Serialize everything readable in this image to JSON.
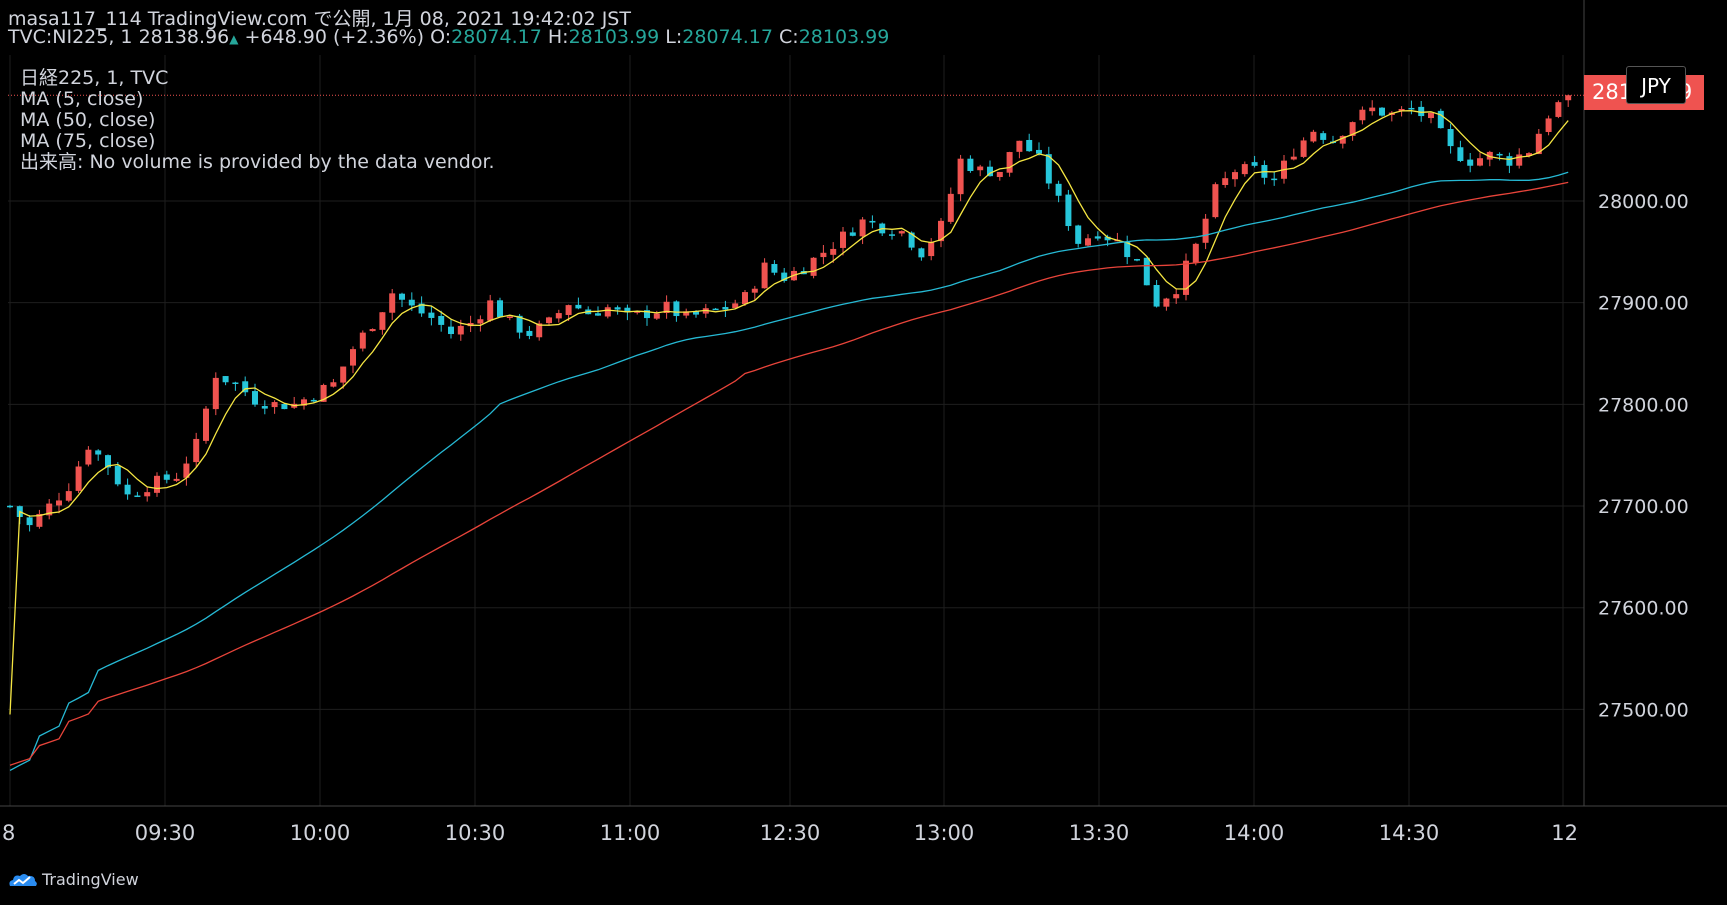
{
  "header": {
    "line1": "masa117_114 TradingView.com で公開, 1月 08, 2021 19:42:02 JST",
    "symbol": "TVC:NI225, 1",
    "last": "28138.96",
    "change": "+648.90 (+2.36%)",
    "o_label": "O:",
    "o_val": "28074.17",
    "h_label": "H:",
    "h_val": "28103.99",
    "l_label": "L:",
    "l_val": "28074.17",
    "c_label": "C:",
    "c_val": "28103.99"
  },
  "legend": {
    "title": "日経225, 1, TVC",
    "ma5": "MA (5, close)",
    "ma50": "MA (50, close)",
    "ma75": "MA (75, close)",
    "volume": "出来高: No volume is provided by the data vendor."
  },
  "price_tag": "28103.99",
  "currency_tag": "JPY",
  "brand": "TradingView",
  "icons": {
    "logo": "tradingview-logo-icon"
  },
  "colors": {
    "background": "#000000",
    "up": "#ef5350",
    "down": "#26c6da",
    "ma5": "#f5e642",
    "ma50": "#26b9d4",
    "ma75": "#e8443a",
    "grid": "#1e1e1e",
    "text": "#d1d4dc"
  },
  "chart_data": {
    "type": "candlestick",
    "title": "日経225, 1, TVC",
    "ylim": [
      27400,
      28200
    ],
    "y_ticks": [
      27500,
      27600,
      27700,
      27800,
      27900,
      28000
    ],
    "y_tick_labels": [
      "27500.00",
      "27600.00",
      "27700.00",
      "27800.00",
      "27900.00",
      "28000.00"
    ],
    "x_tick_labels": [
      "8",
      "09:30",
      "10:00",
      "10:30",
      "11:00",
      "12:30",
      "13:00",
      "13:30",
      "14:00",
      "14:30",
      "12"
    ],
    "price_anchors": [
      [
        0,
        27700
      ],
      [
        2,
        27680
      ],
      [
        4,
        27700
      ],
      [
        6,
        27720
      ],
      [
        8,
        27760
      ],
      [
        10,
        27740
      ],
      [
        12,
        27710
      ],
      [
        14,
        27720
      ],
      [
        17,
        27730
      ],
      [
        19,
        27760
      ],
      [
        21,
        27830
      ],
      [
        23,
        27820
      ],
      [
        25,
        27805
      ],
      [
        27,
        27800
      ],
      [
        29,
        27800
      ],
      [
        31,
        27810
      ],
      [
        33,
        27820
      ],
      [
        35,
        27855
      ],
      [
        37,
        27880
      ],
      [
        39,
        27910
      ],
      [
        41,
        27895
      ],
      [
        43,
        27885
      ],
      [
        45,
        27870
      ],
      [
        47,
        27880
      ],
      [
        49,
        27900
      ],
      [
        51,
        27880
      ],
      [
        53,
        27870
      ],
      [
        55,
        27880
      ],
      [
        57,
        27900
      ],
      [
        59,
        27890
      ],
      [
        61,
        27895
      ],
      [
        63,
        27885
      ],
      [
        65,
        27890
      ],
      [
        67,
        27895
      ],
      [
        69,
        27885
      ],
      [
        71,
        27890
      ],
      [
        73,
        27895
      ],
      [
        75,
        27905
      ],
      [
        77,
        27935
      ],
      [
        79,
        27925
      ],
      [
        81,
        27935
      ],
      [
        83,
        27950
      ],
      [
        85,
        27965
      ],
      [
        87,
        27980
      ],
      [
        89,
        27975
      ],
      [
        91,
        27970
      ],
      [
        93,
        27950
      ],
      [
        95,
        27975
      ],
      [
        97,
        28040
      ],
      [
        99,
        28030
      ],
      [
        101,
        28030
      ],
      [
        103,
        28060
      ],
      [
        105,
        28040
      ],
      [
        107,
        28000
      ],
      [
        109,
        27960
      ],
      [
        111,
        27970
      ],
      [
        113,
        27960
      ],
      [
        115,
        27940
      ],
      [
        117,
        27900
      ],
      [
        119,
        27915
      ],
      [
        121,
        27955
      ],
      [
        123,
        28010
      ],
      [
        125,
        28030
      ],
      [
        127,
        28030
      ],
      [
        129,
        28020
      ],
      [
        131,
        28050
      ],
      [
        133,
        28070
      ],
      [
        135,
        28060
      ],
      [
        137,
        28080
      ],
      [
        139,
        28090
      ],
      [
        141,
        28085
      ],
      [
        143,
        28090
      ],
      [
        145,
        28080
      ],
      [
        147,
        28050
      ],
      [
        149,
        28040
      ],
      [
        151,
        28045
      ],
      [
        153,
        28040
      ],
      [
        155,
        28050
      ],
      [
        157,
        28085
      ],
      [
        159,
        28105
      ]
    ],
    "series": [
      {
        "name": "MA (5, close)",
        "period": 5
      },
      {
        "name": "MA (50, close)",
        "period": 50
      },
      {
        "name": "MA (75, close)",
        "period": 75
      }
    ],
    "ma_start": {
      "MA (50, close)": [
        27440,
        27460,
        27480,
        27500
      ],
      "MA (75, close)": [
        27445,
        27455,
        27470,
        27480
      ]
    },
    "last_close": 28103.99
  }
}
